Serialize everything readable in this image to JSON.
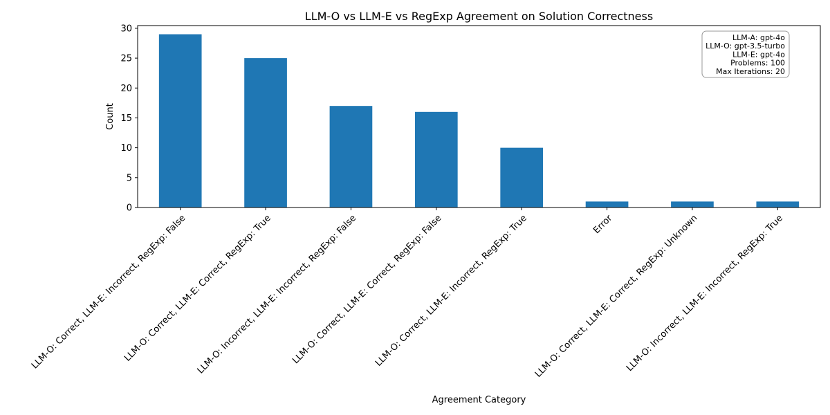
{
  "chart_data": {
    "type": "bar",
    "title": "LLM-O vs LLM-E vs RegExp Agreement on Solution Correctness",
    "xlabel": "Agreement Category",
    "ylabel": "Count",
    "categories": [
      "LLM-O: Correct, LLM-E: Incorrect, RegExp: False",
      "LLM-O: Correct, LLM-E: Correct, RegExp: True",
      "LLM-O: Incorrect, LLM-E: Incorrect, RegExp: False",
      "LLM-O: Correct, LLM-E: Correct, RegExp: False",
      "LLM-O: Correct, LLM-E: Incorrect, RegExp: True",
      "Error",
      "LLM-O: Correct, LLM-E: Correct, RegExp: Unknown",
      "LLM-O: Incorrect, LLM-E: Incorrect, RegExp: True"
    ],
    "values": [
      29,
      25,
      17,
      16,
      10,
      1,
      1,
      1
    ],
    "ylim": [
      0,
      30.45
    ],
    "yticks": [
      0,
      5,
      10,
      15,
      20,
      25,
      30
    ],
    "bar_color": "#1f77b4",
    "grid": false,
    "legend": null,
    "info_box": {
      "position": "top-right",
      "lines": [
        "LLM-A: gpt-4o",
        "LLM-O: gpt-3.5-turbo",
        "LLM-E: gpt-4o",
        "Problems: 100",
        "Max Iterations: 20"
      ]
    }
  }
}
